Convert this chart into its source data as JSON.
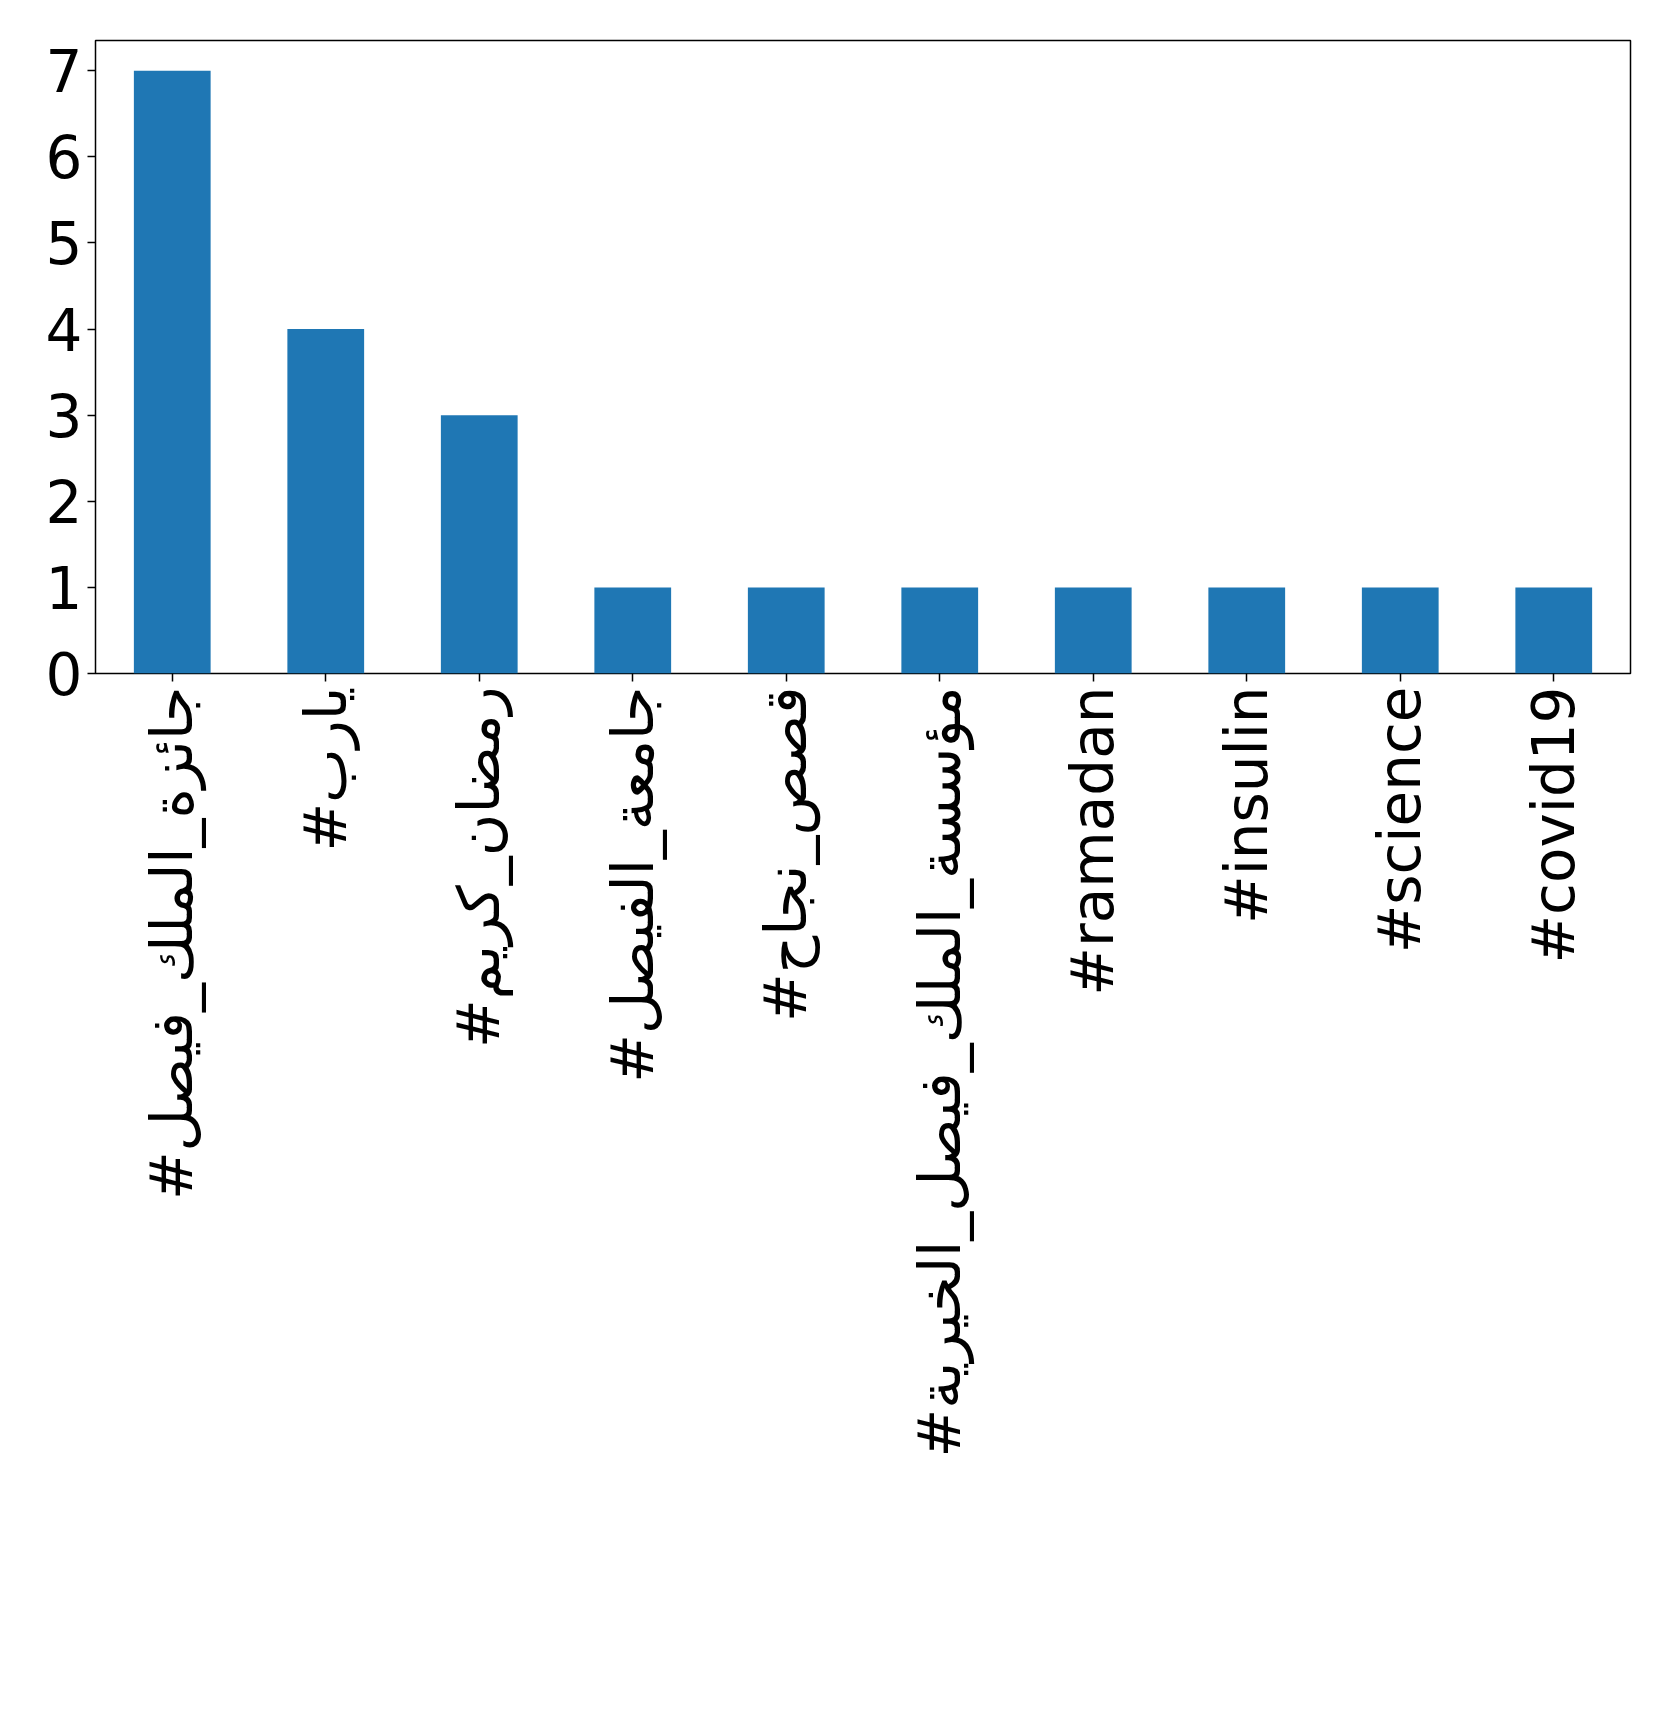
{
  "chart_data": {
    "type": "bar",
    "categories": [
      "#جائزة_الملك_فيصل",
      "#يارب",
      "#رمضان_كريم",
      "#جامعة_الفيصل",
      "#قصص_نجاح",
      "#مؤسسة_الملك_فيصل_الخيرية",
      "#ramadan",
      "#insulin",
      "#science",
      "#covid19"
    ],
    "values": [
      7,
      4,
      3,
      1,
      1,
      1,
      1,
      1,
      1,
      1
    ],
    "color": "#1f77b4",
    "ylim": [
      0,
      7.35
    ],
    "yticks": [
      0,
      1,
      2,
      3,
      4,
      5,
      6,
      7
    ],
    "grid": false
  }
}
